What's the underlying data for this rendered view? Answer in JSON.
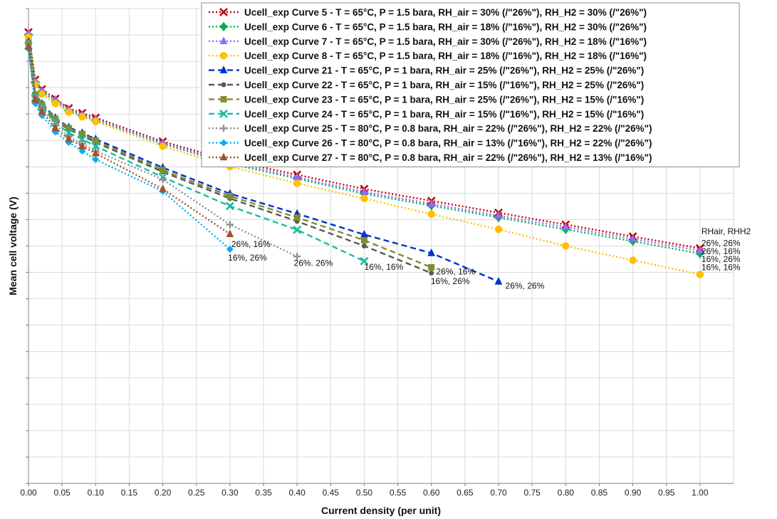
{
  "chart_data": {
    "type": "line",
    "title": "",
    "xlabel": "Current density (per unit)",
    "ylabel": "Mean cell voltage (V)",
    "xlim": [
      0,
      1.05
    ],
    "ylim": [
      0,
      1.0
    ],
    "xticks": [
      "0.00",
      "0.05",
      "0.10",
      "0.15",
      "0.20",
      "0.25",
      "0.30",
      "0.35",
      "0.40",
      "0.45",
      "0.50",
      "0.55",
      "0.60",
      "0.65",
      "0.70",
      "0.75",
      "0.80",
      "0.85",
      "0.90",
      "0.95",
      "1.00"
    ],
    "y_tick_labels_shown": false,
    "grid": true,
    "legend_position": "top-right",
    "series": [
      {
        "name": "Ucell_exp Curve 5 - T =  65°C, P = 1.5 bara, RH_air = 30% (/\"26%\"), RH_H2 = 30% (/\"26%\")",
        "color": "#c00000",
        "dash": "2,3",
        "marker": "x",
        "x": [
          0.0,
          0.01,
          0.02,
          0.04,
          0.06,
          0.08,
          0.1,
          0.2,
          0.3,
          0.4,
          0.5,
          0.6,
          0.7,
          0.8,
          0.9,
          1.0
        ],
        "y": [
          0.95,
          0.85,
          0.83,
          0.81,
          0.79,
          0.78,
          0.77,
          0.72,
          0.68,
          0.65,
          0.62,
          0.595,
          0.57,
          0.545,
          0.52,
          0.495
        ]
      },
      {
        "name": "Ucell_exp Curve 6 - T =  65°C, P = 1.5 bara, RH_air = 18% (/\"16%\"), RH_H2 = 30% (/\"26%\")",
        "color": "#00b050",
        "dash": "2,3",
        "marker": "star",
        "x": [
          0.0,
          0.01,
          0.02,
          0.04,
          0.06,
          0.08,
          0.1,
          0.2,
          0.3,
          0.4,
          0.5,
          0.6,
          0.7,
          0.8,
          0.9,
          1.0
        ],
        "y": [
          0.945,
          0.845,
          0.825,
          0.805,
          0.785,
          0.775,
          0.765,
          0.715,
          0.673,
          0.642,
          0.61,
          0.585,
          0.56,
          0.535,
          0.51,
          0.484
        ]
      },
      {
        "name": "Ucell_exp Curve 7 - T =  65°C, P = 1.5 bara, RH_air = 30% (/\"26%\"), RH_H2 = 18% (/\"16%\")",
        "color": "#9966ff",
        "dash": "2,3",
        "marker": "triangle",
        "x": [
          0.0,
          0.01,
          0.02,
          0.04,
          0.06,
          0.08,
          0.1,
          0.2,
          0.3,
          0.4,
          0.5,
          0.6,
          0.7,
          0.8,
          0.9,
          1.0
        ],
        "y": [
          0.948,
          0.848,
          0.828,
          0.808,
          0.788,
          0.777,
          0.767,
          0.717,
          0.676,
          0.645,
          0.614,
          0.589,
          0.564,
          0.54,
          0.515,
          0.49
        ]
      },
      {
        "name": "Ucell_exp Curve 8 - T =  65°C, P = 1.5 bara, RH_air = 18% (/\"16%\"), RH_H2 = 18% (/\"16%\")",
        "color": "#ffc000",
        "dash": "2,3",
        "marker": "circle",
        "x": [
          0.0,
          0.01,
          0.02,
          0.04,
          0.06,
          0.08,
          0.1,
          0.2,
          0.3,
          0.4,
          0.5,
          0.6,
          0.7,
          0.8,
          0.9,
          1.0
        ],
        "y": [
          0.94,
          0.84,
          0.82,
          0.8,
          0.782,
          0.772,
          0.762,
          0.71,
          0.667,
          0.632,
          0.6,
          0.567,
          0.535,
          0.5,
          0.47,
          0.44
        ]
      },
      {
        "name": "Ucell_exp Curve 21 - T =  65°C, P = 1 bara, RH_air = 25% (/\"26%\"), RH_H2 = 25% (/\"26%\")",
        "color": "#0033cc",
        "dash": "8,5",
        "marker": "triangle",
        "x": [
          0.0,
          0.01,
          0.02,
          0.04,
          0.06,
          0.08,
          0.1,
          0.2,
          0.3,
          0.4,
          0.5,
          0.6,
          0.7
        ],
        "y": [
          0.93,
          0.82,
          0.8,
          0.77,
          0.75,
          0.738,
          0.725,
          0.665,
          0.61,
          0.568,
          0.524,
          0.485,
          0.425
        ]
      },
      {
        "name": "Ucell_exp Curve 22 - T =  65°C, P = 1 bara, RH_air = 15% (/\"16%\"), RH_H2 = 25% (/\"26%\")",
        "color": "#595959",
        "dash": "8,5",
        "marker": "circle-small",
        "x": [
          0.0,
          0.01,
          0.02,
          0.04,
          0.06,
          0.08,
          0.1,
          0.2,
          0.3,
          0.4,
          0.5,
          0.6
        ],
        "y": [
          0.925,
          0.815,
          0.795,
          0.765,
          0.745,
          0.733,
          0.718,
          0.656,
          0.6,
          0.552,
          0.5,
          0.443
        ]
      },
      {
        "name": "Ucell_exp Curve 23 - T =  65°C, P = 1 bara, RH_air = 25% (/\"26%\"), RH_H2 = 15% (/\"16%\")",
        "color": "#7f8f2f",
        "dash": "8,5",
        "marker": "square",
        "x": [
          0.0,
          0.01,
          0.02,
          0.04,
          0.06,
          0.08,
          0.1,
          0.2,
          0.3,
          0.4,
          0.5,
          0.6
        ],
        "y": [
          0.928,
          0.818,
          0.798,
          0.768,
          0.748,
          0.736,
          0.722,
          0.66,
          0.605,
          0.56,
          0.512,
          0.455
        ]
      },
      {
        "name": "Ucell_exp Curve 24 - T =  65°C, P = 1 bara, RH_air = 15% (/\"16%\"), RH_H2 = 15% (/\"16%\")",
        "color": "#1abc9c",
        "dash": "8,5",
        "marker": "x",
        "x": [
          0.0,
          0.01,
          0.02,
          0.04,
          0.06,
          0.08,
          0.1,
          0.2,
          0.3,
          0.4,
          0.5
        ],
        "y": [
          0.922,
          0.812,
          0.792,
          0.76,
          0.738,
          0.725,
          0.71,
          0.645,
          0.584,
          0.534,
          0.468
        ]
      },
      {
        "name": "Ucell_exp Curve 25 - T =  80°C, P = 0.8 bara, RH_air = 22% (/\"26%\"), RH_H2 = 22% (/\"26%\")",
        "color": "#909090",
        "dash": "2,3",
        "marker": "plus",
        "x": [
          0.0,
          0.01,
          0.02,
          0.04,
          0.06,
          0.08,
          0.1,
          0.2,
          0.3,
          0.4
        ],
        "y": [
          0.925,
          0.815,
          0.79,
          0.755,
          0.73,
          0.715,
          0.7,
          0.64,
          0.545,
          0.478
        ]
      },
      {
        "name": "Ucell_exp Curve 26 - T =  80°C, P = 0.8 bara, RH_air = 13% (/\"16%\"), RH_H2 = 22% (/\"26%\")",
        "color": "#00b0f0",
        "dash": "2,3",
        "marker": "diamond",
        "x": [
          0.0,
          0.01,
          0.02,
          0.04,
          0.06,
          0.08,
          0.1,
          0.2,
          0.3
        ],
        "y": [
          0.915,
          0.8,
          0.775,
          0.74,
          0.718,
          0.7,
          0.682,
          0.615,
          0.493
        ]
      },
      {
        "name": "Ucell_exp Curve 27 - T =  80°C, P = 0.8 bara, RH_air = 22% (/\"26%\"), RH_H2 = 13% (/\"16%\")",
        "color": "#a0522d",
        "dash": "2,3",
        "marker": "triangle",
        "x": [
          0.0,
          0.01,
          0.02,
          0.04,
          0.06,
          0.08,
          0.1,
          0.2,
          0.3
        ],
        "y": [
          0.92,
          0.808,
          0.783,
          0.748,
          0.725,
          0.71,
          0.695,
          0.62,
          0.525
        ]
      }
    ],
    "annotations": [
      {
        "text": "RHair, RHH2",
        "x": 1.0,
        "y": 0.525,
        "anchor": "start"
      },
      {
        "text": "26%, 26%",
        "x": 1.0,
        "y": 0.5,
        "anchor": "start"
      },
      {
        "text": "26%, 16%",
        "x": 1.0,
        "y": 0.483,
        "anchor": "start"
      },
      {
        "text": "16%, 26%",
        "x": 1.0,
        "y": 0.466,
        "anchor": "start"
      },
      {
        "text": "16%, 16%",
        "x": 1.0,
        "y": 0.449,
        "anchor": "start"
      },
      {
        "text": "26%, 16%",
        "x": 0.3,
        "y": 0.498,
        "anchor": "start"
      },
      {
        "text": "16%, 26%",
        "x": 0.295,
        "y": 0.469,
        "anchor": "start"
      },
      {
        "text": "26%. 26%",
        "x": 0.393,
        "y": 0.458,
        "anchor": "start"
      },
      {
        "text": "16%, 16%",
        "x": 0.498,
        "y": 0.45,
        "anchor": "start"
      },
      {
        "text": "26%, 16%",
        "x": 0.605,
        "y": 0.44,
        "anchor": "start"
      },
      {
        "text": "16%, 26%",
        "x": 0.597,
        "y": 0.42,
        "anchor": "start"
      },
      {
        "text": "26%, 26%",
        "x": 0.708,
        "y": 0.41,
        "anchor": "start"
      }
    ]
  }
}
